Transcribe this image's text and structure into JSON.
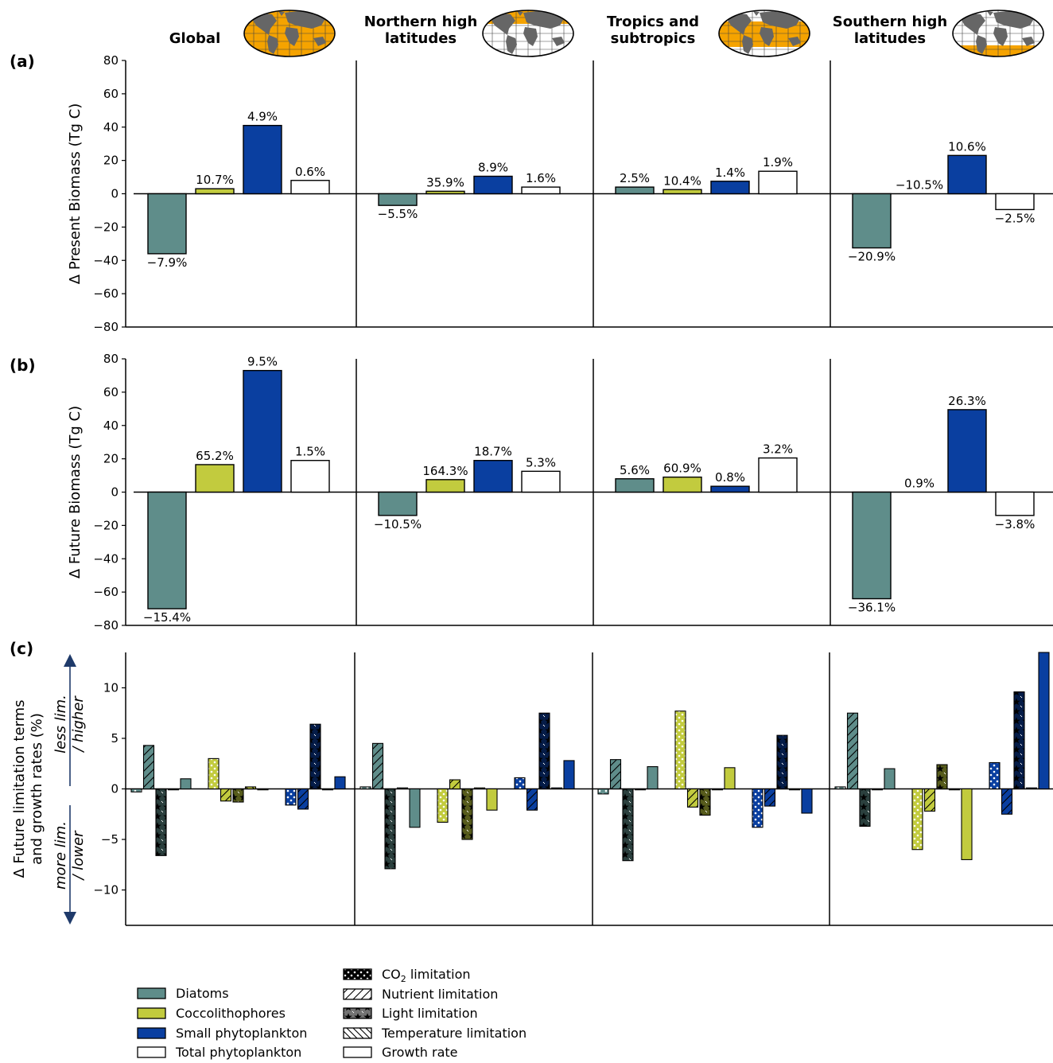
{
  "colors": {
    "diatoms": "#5f8d8a",
    "coccolithophores": "#c2cb3e",
    "small_phytoplankton": "#0a3fa0",
    "total_phytoplankton": "#ffffff",
    "ocean_highlight": "#f5a300",
    "land": "#666666"
  },
  "regions": [
    {
      "title_lines": [
        "Global"
      ],
      "map_highlight": "global"
    },
    {
      "title_lines": [
        "Northern high",
        "latitudes"
      ],
      "map_highlight": "north"
    },
    {
      "title_lines": [
        "Tropics and",
        "subtropics"
      ],
      "map_highlight": "tropics"
    },
    {
      "title_lines": [
        "Southern high",
        "latitudes"
      ],
      "map_highlight": "south"
    }
  ],
  "chart_data": [
    {
      "panel_label": "(a)",
      "type": "bar",
      "ylabel": "Δ Present Biomass (Tg C)",
      "ylim": [
        -80,
        80
      ],
      "yticks": [
        -80,
        -60,
        -40,
        -20,
        0,
        20,
        40,
        60,
        80
      ],
      "series_order": [
        "Diatoms",
        "Coccolithophores",
        "Small phytoplankton",
        "Total phytoplankton"
      ],
      "values": [
        [
          -36,
          3,
          41,
          8
        ],
        [
          -7,
          1.5,
          10.5,
          4
        ],
        [
          4,
          2.5,
          7.5,
          13.5
        ],
        [
          -32.5,
          0,
          23,
          -9.5
        ]
      ],
      "labels": [
        [
          "−7.9%",
          "10.7%",
          "4.9%",
          "0.6%"
        ],
        [
          "−5.5%",
          "35.9%",
          "8.9%",
          "1.6%"
        ],
        [
          "2.5%",
          "10.4%",
          "1.4%",
          "1.9%"
        ],
        [
          "−20.9%",
          "−10.5%",
          "10.6%",
          "−2.5%"
        ]
      ]
    },
    {
      "panel_label": "(b)",
      "type": "bar",
      "ylabel": "Δ Future Biomass (Tg C)",
      "ylim": [
        -80,
        80
      ],
      "yticks": [
        -80,
        -60,
        -40,
        -20,
        0,
        20,
        40,
        60,
        80
      ],
      "series_order": [
        "Diatoms",
        "Coccolithophores",
        "Small phytoplankton",
        "Total phytoplankton"
      ],
      "values": [
        [
          -70,
          16.5,
          73,
          19
        ],
        [
          -14,
          7.5,
          19,
          12.5
        ],
        [
          8,
          9,
          3.5,
          20.5
        ],
        [
          -64,
          0,
          49.5,
          -14
        ]
      ],
      "labels": [
        [
          "−15.4%",
          "65.2%",
          "9.5%",
          "1.5%"
        ],
        [
          "−10.5%",
          "164.3%",
          "18.7%",
          "5.3%"
        ],
        [
          "5.6%",
          "60.9%",
          "0.8%",
          "3.2%"
        ],
        [
          "−36.1%",
          "0.9%",
          "26.3%",
          "−3.8%"
        ]
      ]
    },
    {
      "panel_label": "(c)",
      "type": "bar",
      "ylabel_lines": [
        "Δ Future limitation terms",
        "and growth rates (%)"
      ],
      "ylim": [
        -13.5,
        13.5
      ],
      "yticks": [
        -10,
        -5,
        0,
        5,
        10
      ],
      "arrow_up_lines": [
        "less lim.",
        "/ higher"
      ],
      "arrow_down_lines": [
        "more lim.",
        "/ lower"
      ],
      "bar_types": [
        "CO2 limitation",
        "Nutrient limitation",
        "Light limitation",
        "Temperature limitation",
        "Growth rate"
      ],
      "values": [
        [
          [
            -0.3,
            4.3,
            -6.6,
            0,
            1.0
          ],
          [
            3.0,
            -1.2,
            -1.3,
            0.2,
            0
          ],
          [
            -1.6,
            -2.0,
            6.4,
            0,
            1.2
          ]
        ],
        [
          [
            0.2,
            4.5,
            -7.9,
            0.1,
            -3.8
          ],
          [
            -3.3,
            0.9,
            -5.0,
            0.1,
            -2.1
          ],
          [
            1.1,
            -2.1,
            7.5,
            0.1,
            2.8
          ]
        ],
        [
          [
            -0.5,
            2.9,
            -7.1,
            0,
            2.2
          ],
          [
            7.7,
            -1.8,
            -2.6,
            0,
            2.1
          ],
          [
            -3.8,
            -1.7,
            5.3,
            0,
            -2.4
          ]
        ],
        [
          [
            0.2,
            7.5,
            -3.7,
            0,
            2.0
          ],
          [
            -6.0,
            -2.2,
            2.4,
            0,
            -7.0
          ],
          [
            2.6,
            -2.5,
            9.6,
            0.1,
            13.5
          ]
        ]
      ]
    }
  ],
  "legend": {
    "groups": [
      "Diatoms",
      "Coccolithophores",
      "Small phytoplankton",
      "Total phytoplankton"
    ],
    "types": [
      {
        "text": "CO",
        "sub": "2",
        "tail": " limitation"
      },
      {
        "text": "Nutrient limitation"
      },
      {
        "text": "Light limitation"
      },
      {
        "text": "Temperature limitation"
      },
      {
        "text": "Growth rate"
      }
    ]
  }
}
